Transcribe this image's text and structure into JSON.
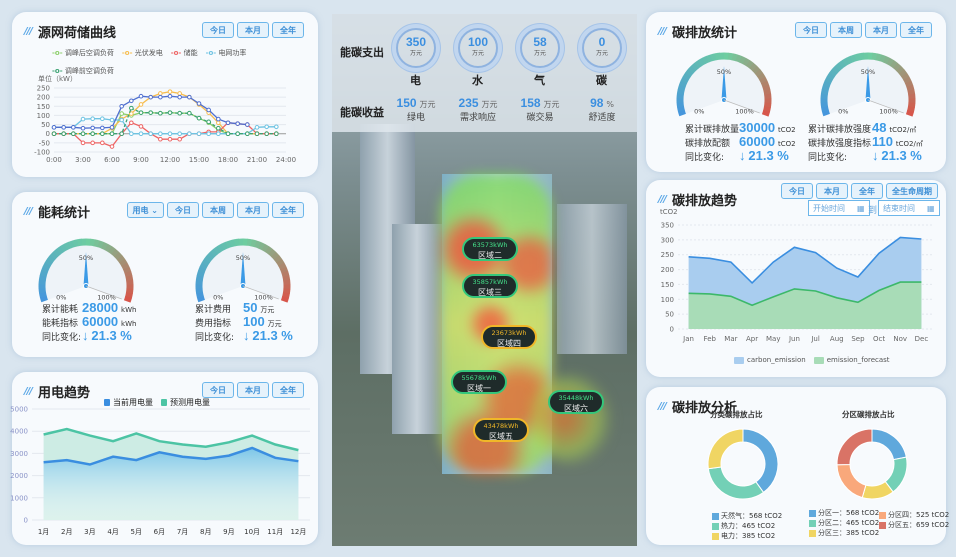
{
  "colors": {
    "accent": "#3b9ae6",
    "button_border": "#6cb6ea"
  },
  "source_grid": {
    "title": "源网荷储曲线",
    "buttons": [
      "今日",
      "本月",
      "全年"
    ],
    "unit": "单位（kW）",
    "chart_data": {
      "type": "line",
      "ylabel": "单位（kW）",
      "ylim": [
        -100,
        250
      ],
      "yticks": [
        250,
        200,
        150,
        100,
        50,
        0,
        -50,
        -100
      ],
      "xticks": [
        "0:00",
        "3:00",
        "6:00",
        "9:00",
        "12:00",
        "15:00",
        "18:00",
        "21:00",
        "24:00"
      ],
      "x": [
        0,
        1,
        2,
        3,
        4,
        5,
        6,
        7,
        8,
        9,
        10,
        11,
        12,
        13,
        14,
        15,
        16,
        17,
        18,
        19,
        20,
        21,
        22,
        23
      ],
      "series": [
        {
          "name": "调峰后空调负荷",
          "color": "#8dcf6b",
          "values": [
            0,
            0,
            0,
            0,
            0,
            0,
            0,
            110,
            100,
            115,
            115,
            112,
            115,
            112,
            112,
            85,
            60,
            20,
            0,
            0,
            0,
            0,
            0,
            0
          ]
        },
        {
          "name": "光伏发电",
          "color": "#f7bd4f",
          "values": [
            0,
            0,
            0,
            0,
            0,
            0,
            30,
            80,
            110,
            160,
            200,
            220,
            230,
            220,
            200,
            160,
            115,
            60,
            0,
            0,
            0,
            0,
            0,
            0
          ]
        },
        {
          "name": "储能",
          "color": "#ee6464",
          "values": [
            0,
            0,
            0,
            -50,
            -50,
            -50,
            -70,
            0,
            60,
            40,
            0,
            -30,
            -30,
            -30,
            0,
            0,
            10,
            10,
            60,
            55,
            50,
            0,
            0,
            0
          ]
        },
        {
          "name": "电网功率",
          "color": "#6ec3e2",
          "values": [
            35,
            35,
            35,
            80,
            82,
            82,
            75,
            75,
            0,
            0,
            0,
            0,
            0,
            0,
            0,
            0,
            0,
            0,
            0,
            0,
            0,
            35,
            38,
            38
          ]
        },
        {
          "name": "调峰前空调负荷",
          "color": "#3ba272",
          "dashed": true,
          "values": [
            0,
            0,
            0,
            0,
            0,
            0,
            0,
            0,
            140,
            115,
            115,
            112,
            115,
            112,
            112,
            85,
            65,
            30,
            0,
            0,
            0,
            0,
            0,
            0
          ]
        },
        {
          "color": "#4f6fcf",
          "values": [
            35,
            35,
            35,
            30,
            32,
            32,
            35,
            150,
            180,
            205,
            200,
            200,
            205,
            200,
            200,
            165,
            130,
            80,
            60,
            55,
            50,
            null,
            null,
            null
          ]
        }
      ]
    }
  },
  "energy": {
    "title": "能耗统计",
    "select": "用电",
    "buttons": [
      "今日",
      "本周",
      "本月",
      "全年"
    ],
    "gauges": [
      {
        "needle_percent": 50,
        "labels": [
          "0%",
          "50%",
          "100%"
        ],
        "rows": [
          {
            "label": "累计能耗",
            "value": "28000",
            "unit": "kWh"
          },
          {
            "label": "能耗指标",
            "value": "60000",
            "unit": "kWh"
          }
        ],
        "change_label": "同比变化:",
        "change": "21.3 %",
        "arrow": "↓"
      },
      {
        "needle_percent": 50,
        "labels": [
          "0%",
          "50%",
          "100%"
        ],
        "rows": [
          {
            "label": "累计费用",
            "value": "50",
            "unit": "万元"
          },
          {
            "label": "费用指标",
            "value": "100",
            "unit": "万元"
          }
        ],
        "change_label": "同比变化:",
        "change": "21.3 %",
        "arrow": "↓"
      }
    ]
  },
  "power_trend": {
    "title": "用电趋势",
    "buttons": [
      "今日",
      "本月",
      "全年"
    ],
    "chart_data": {
      "type": "area",
      "ylim": [
        0,
        5000
      ],
      "yticks": [
        5000,
        4000,
        3000,
        2000,
        1000,
        0
      ],
      "categories": [
        "1月",
        "2月",
        "3月",
        "4月",
        "5月",
        "6月",
        "7月",
        "8月",
        "9月",
        "10月",
        "11月",
        "12月"
      ],
      "series": [
        {
          "name": "当前用电量",
          "color": "#3a8ee0",
          "values": [
            2600,
            2700,
            2500,
            2850,
            2700,
            3050,
            2850,
            2750,
            2900,
            3250,
            2800,
            2650
          ]
        },
        {
          "name": "预测用电量",
          "color": "#4cc4a4",
          "values": [
            3850,
            4100,
            3800,
            3550,
            3900,
            3550,
            3400,
            3300,
            3500,
            3800,
            3400,
            3150
          ]
        }
      ]
    }
  },
  "center": {
    "expense_label": "能碳支出",
    "income_label": "能碳收益",
    "expenses": [
      {
        "value": "350",
        "unit": "万元",
        "name": "电"
      },
      {
        "value": "100",
        "unit": "万元",
        "name": "水"
      },
      {
        "value": "58",
        "unit": "万元",
        "name": "气"
      },
      {
        "value": "0",
        "unit": "万元",
        "name": "碳"
      }
    ],
    "incomes": [
      {
        "value": "150",
        "unit": "万元",
        "name": "绿电"
      },
      {
        "value": "235",
        "unit": "万元",
        "name": "需求响应"
      },
      {
        "value": "158",
        "unit": "万元",
        "name": "碳交易"
      },
      {
        "value": "98",
        "unit": "%",
        "name": "舒适度"
      }
    ],
    "zones": [
      {
        "value": "63573kWh",
        "name": "区域二"
      },
      {
        "value": "35857kWh",
        "name": "区域三"
      },
      {
        "value": "23673kWh",
        "name": "区域四"
      },
      {
        "value": "55678kWh",
        "name": "区域一"
      },
      {
        "value": "35448kWh",
        "name": "区域六"
      },
      {
        "value": "43478kWh",
        "name": "区域五"
      }
    ]
  },
  "carbon_stats": {
    "title": "碳排放统计",
    "buttons": [
      "今日",
      "本周",
      "本月",
      "全年"
    ],
    "gauges": [
      {
        "needle_percent": 50,
        "labels": [
          "0%",
          "50%",
          "100%"
        ],
        "rows": [
          {
            "label": "累计碳排放量",
            "value": "30000",
            "unit": "tCO2"
          },
          {
            "label": "碳排放配额",
            "value": "60000",
            "unit": "tCO2"
          }
        ],
        "change_label": "同比变化:",
        "change": "21.3 %",
        "arrow": "↓"
      },
      {
        "needle_percent": 50,
        "labels": [
          "0%",
          "50%",
          "100%"
        ],
        "rows": [
          {
            "label": "累计碳排放强度",
            "value": "48",
            "unit": "tCO2/㎡"
          },
          {
            "label": "碳排放强度指标",
            "value": "110",
            "unit": "tCO2/㎡"
          }
        ],
        "change_label": "同比变化:",
        "change": "21.3 %",
        "arrow": "↓"
      }
    ]
  },
  "carbon_trend": {
    "title": "碳排放趋势",
    "buttons": [
      "今日",
      "本月",
      "全年",
      "全生命周期"
    ],
    "start_placeholder": "开始时间",
    "to": "到",
    "end_placeholder": "结束时间",
    "chart_data": {
      "type": "area",
      "ylabel": "tCO2",
      "ylim": [
        0,
        350
      ],
      "yticks": [
        350,
        300,
        250,
        200,
        150,
        100,
        50,
        0
      ],
      "categories": [
        "Jan",
        "Feb",
        "Mar",
        "Apr",
        "May",
        "Jun",
        "Jul",
        "Aug",
        "Sep",
        "Oct",
        "Nov",
        "Dec"
      ],
      "series": [
        {
          "name": "carbon_emission",
          "color": "#3a8ee0",
          "fill": "#a9cdef",
          "values": [
            243,
            238,
            225,
            155,
            225,
            275,
            257,
            205,
            175,
            255,
            308,
            303
          ]
        },
        {
          "name": "emission_forecast",
          "color": "#3cb86a",
          "fill": "#a8dcb7",
          "values": [
            120,
            118,
            110,
            80,
            108,
            135,
            128,
            105,
            90,
            130,
            158,
            158
          ]
        }
      ],
      "legend": "bottom"
    }
  },
  "carbon_analysis": {
    "title": "碳排放分析",
    "chart_data": [
      {
        "type": "pie",
        "title": "分类碳排放占比",
        "slices": [
          {
            "name": "天然气",
            "value": 568,
            "unit": "tCO2",
            "color": "#5fa8dc"
          },
          {
            "name": "热力",
            "value": 465,
            "unit": "tCO2",
            "color": "#73d0b6"
          },
          {
            "name": "电力",
            "value": 385,
            "unit": "tCO2",
            "color": "#f0d563"
          }
        ]
      },
      {
        "type": "pie",
        "title": "分区碳排放占比",
        "slices": [
          {
            "name": "分区一",
            "value": 568,
            "unit": "tCO2",
            "color": "#5fa8dc"
          },
          {
            "name": "分区二",
            "value": 465,
            "unit": "tCO2",
            "color": "#73d0b6"
          },
          {
            "name": "分区三",
            "value": 385,
            "unit": "tCO2",
            "color": "#f0d563"
          },
          {
            "name": "分区四",
            "value": 525,
            "unit": "tCO2",
            "color": "#f9a87b"
          },
          {
            "name": "分区五",
            "value": 659,
            "unit": "tCO2",
            "color": "#d97366"
          }
        ]
      }
    ]
  }
}
